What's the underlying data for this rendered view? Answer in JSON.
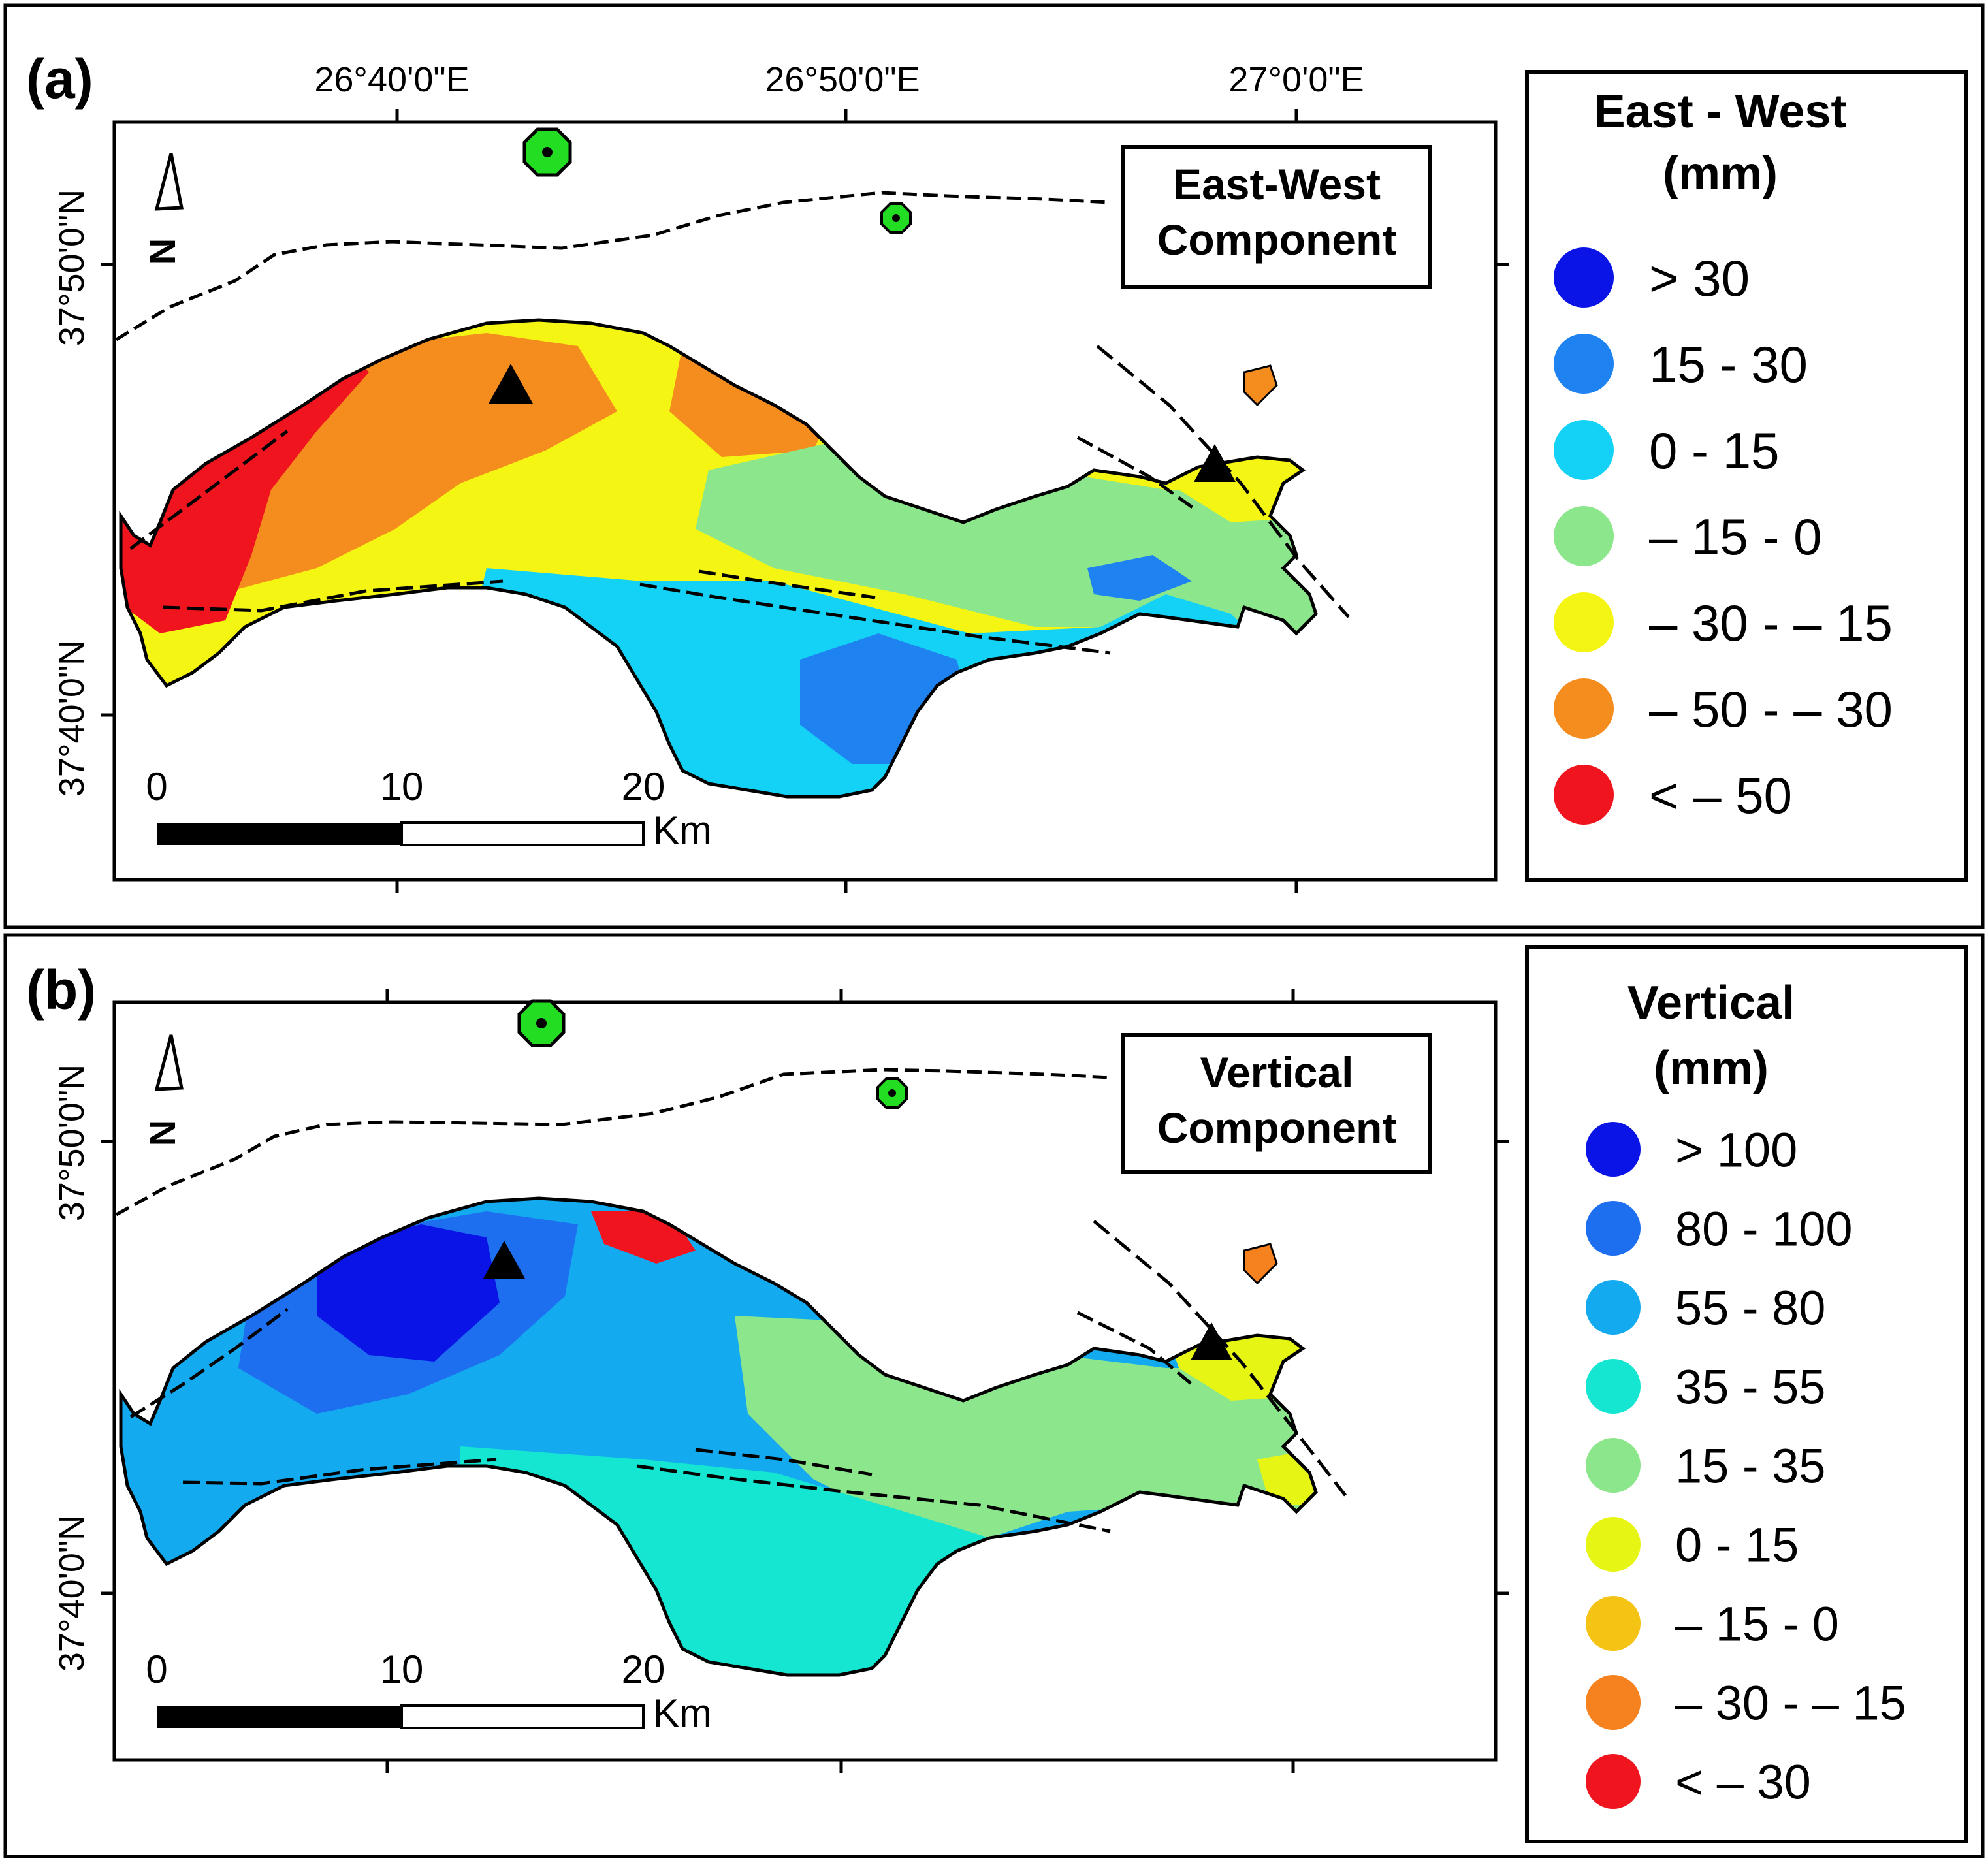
{
  "panels": [
    {
      "id": "a",
      "label": "(a)",
      "component_title": [
        "East-West",
        "Component"
      ],
      "legend_title": [
        "East - West",
        "(mm)"
      ],
      "legend": [
        {
          "label": "> 30",
          "color": "#0a14e6"
        },
        {
          "label": "15 - 30",
          "color": "#1e82f0"
        },
        {
          "label": "0 - 15",
          "color": "#14d2f5"
        },
        {
          "label": "– 15 - 0",
          "color": "#8ce68c"
        },
        {
          "label": "– 30 - – 15",
          "color": "#f5f514"
        },
        {
          "label": "– 50 - – 30",
          "color": "#f58c1e"
        },
        {
          "label": "< – 50",
          "color": "#f0141e"
        }
      ],
      "palette": {
        "west": "#f0141e",
        "northwest": "#f58c1e",
        "center": "#f5f514",
        "east": "#8ce68c",
        "south": "#14d2f5",
        "patch": "#1e82f0",
        "extreme": "#0a14e6",
        "islet": "#f58c1e",
        "peninsula": "#f5f514"
      }
    },
    {
      "id": "b",
      "label": "(b)",
      "component_title": [
        "Vertical",
        "Component"
      ],
      "legend_title": [
        "Vertical",
        "(mm)"
      ],
      "legend": [
        {
          "label": "> 100",
          "color": "#0a14e6"
        },
        {
          "label": "80 - 100",
          "color": "#1e6ef0"
        },
        {
          "label": "55 - 80",
          "color": "#14aaf0"
        },
        {
          "label": "35 - 55",
          "color": "#14e6d2"
        },
        {
          "label": "15 - 35",
          "color": "#8ce68c"
        },
        {
          "label": "0 - 15",
          "color": "#e6f514"
        },
        {
          "label": "– 15 - 0",
          "color": "#f5c314"
        },
        {
          "label": "– 30 - – 15",
          "color": "#f5821e"
        },
        {
          "label": "< – 30",
          "color": "#f0141e"
        }
      ],
      "palette": {
        "west": "#14aaf0",
        "northwest": "#1e6ef0",
        "center": "#14aaf0",
        "east": "#8ce68c",
        "south": "#14e6d2",
        "patch": "#0a14e6",
        "extreme": "#f0141e",
        "islet": "#f5821e",
        "peninsula": "#e6f514"
      }
    }
  ],
  "longitude_labels": [
    "26°40'0\"E",
    "26°50'0\"E",
    "27°0'0\"E"
  ],
  "latitude_labels": [
    "37°50'0\"N",
    "37°40'0\"N"
  ],
  "scale_bar": {
    "ticks": [
      "0",
      "10",
      "20"
    ],
    "unit": "Km"
  },
  "north_arrow": "N",
  "colors": {
    "gps_station": "#22dd22",
    "frame": "#000000"
  }
}
